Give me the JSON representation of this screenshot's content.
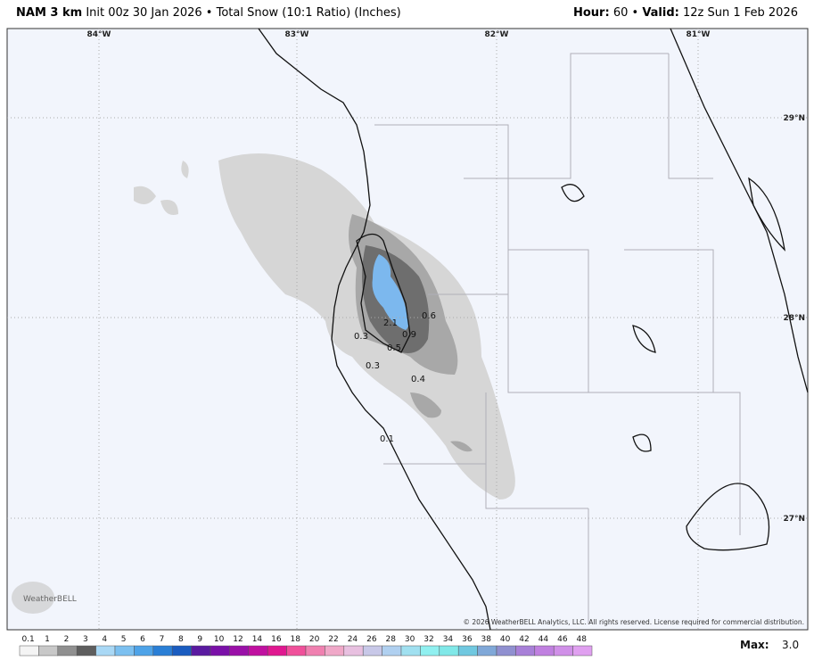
{
  "header": {
    "model": "NAM 3 km",
    "init": "Init 00z 30 Jan 2026",
    "separator": "•",
    "product": "Total Snow (10:1 Ratio) (Inches)",
    "hour_label": "Hour:",
    "hour": "60",
    "valid_label": "Valid:",
    "valid": "12z Sun 1 Feb 2026"
  },
  "map": {
    "lon_labels": [
      "84°W",
      "83°W",
      "82°W",
      "81°W"
    ],
    "lat_labels": [
      "29°N",
      "28°N",
      "27°N"
    ],
    "contour_labels": [
      "0.6",
      "2.1",
      "0.9",
      "0.3",
      "0.5",
      "0.3",
      "0.4",
      "0.1"
    ],
    "copyright": "© 2026 WeatherBELL Analytics, LLC. All rights reserved. License required for commercial distribution.",
    "logo": "WeatherBELL"
  },
  "legend": {
    "labels": [
      "0.1",
      "1",
      "2",
      "3",
      "4",
      "5",
      "6",
      "7",
      "8",
      "9",
      "10",
      "12",
      "14",
      "16",
      "18",
      "20",
      "22",
      "24",
      "26",
      "28",
      "30",
      "32",
      "34",
      "36",
      "38",
      "40",
      "42",
      "44",
      "46",
      "48"
    ],
    "colors": [
      "#f4f4f4",
      "#c8c8c8",
      "#909090",
      "#5e5e5e",
      "#a9d8f5",
      "#7cc0f0",
      "#4ea3e8",
      "#2a7fd6",
      "#1a5cc0",
      "#5a1aa0",
      "#7a10a8",
      "#9a10a8",
      "#c010a0",
      "#e01890",
      "#f0509a",
      "#f080b0",
      "#f0a8c8",
      "#e8c0e0",
      "#c8c8e8",
      "#b0d0f0",
      "#a0e0f0",
      "#90f0f0",
      "#80e8e8",
      "#70c8e0",
      "#80a8d8",
      "#9090d0",
      "#a880d8",
      "#c080e0",
      "#d090e8",
      "#e0a0f0"
    ]
  },
  "max": {
    "label": "Max:",
    "value": "3.0"
  }
}
